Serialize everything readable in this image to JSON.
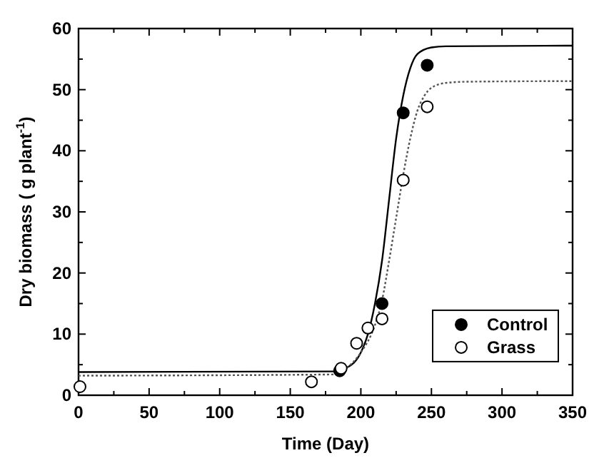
{
  "chart_data": {
    "type": "scatter",
    "xlabel": "Time (Day)",
    "ylabel": "Dry biomass ( g plant$^{-1}$)",
    "xlim": [
      0,
      350
    ],
    "ylim": [
      0,
      60
    ],
    "xticks": [
      0,
      50,
      100,
      150,
      200,
      250,
      300,
      350
    ],
    "yticks": [
      0,
      10,
      20,
      30,
      40,
      50,
      60
    ],
    "grid": false,
    "legend": "bottom right",
    "series": [
      {
        "type": "line",
        "color": "#000000",
        "line_style": "solid",
        "marker": "none",
        "x": [
          0,
          180,
          190,
          200,
          205,
          210,
          215,
          220,
          225,
          230,
          235,
          240,
          250,
          260,
          350
        ],
        "values": [
          3.8,
          3.9,
          4.5,
          7,
          10,
          15,
          22,
          32,
          42,
          49,
          53.5,
          55.8,
          56.9,
          57.1,
          57.2
        ]
      },
      {
        "type": "line",
        "color": "#555555",
        "line_style": "dotted",
        "marker": "none",
        "x": [
          0,
          180,
          190,
          200,
          210,
          215,
          220,
          225,
          230,
          235,
          240,
          245,
          250,
          260,
          275,
          350
        ],
        "values": [
          3.2,
          3.4,
          4.5,
          7,
          11.5,
          15.5,
          22,
          29,
          36,
          42,
          46.5,
          49,
          50.3,
          51.1,
          51.3,
          51.4
        ]
      },
      {
        "name": "Control",
        "color": "#000000",
        "marker": "circle",
        "x": [
          185,
          215,
          230,
          247
        ],
        "values": [
          4,
          15,
          46.2,
          54
        ]
      },
      {
        "name": "Grass",
        "color": "#ffffff",
        "marker": "circle",
        "x": [
          1,
          165,
          186,
          197,
          205,
          215,
          230,
          247
        ],
        "values": [
          1.4,
          2.2,
          4.4,
          8.5,
          11,
          12.5,
          35.2,
          47.2
        ]
      }
    ]
  }
}
